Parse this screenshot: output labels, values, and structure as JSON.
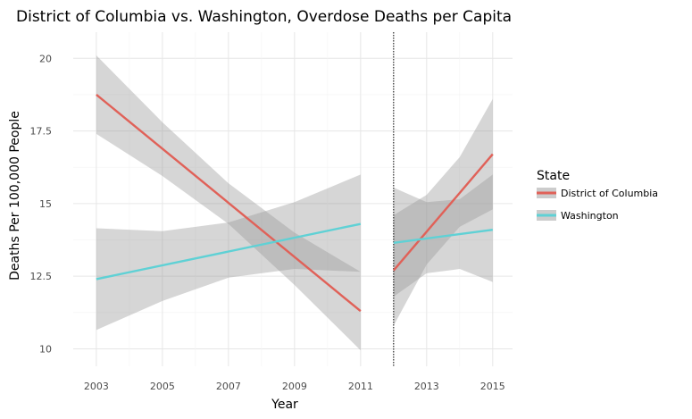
{
  "chart_data": {
    "type": "line",
    "title": "District of Columbia vs. Washington, Overdose Deaths per Capita",
    "xlabel": "Year",
    "ylabel": "Deaths Per 100,000 People",
    "xlim": [
      2002.3,
      2015.6
    ],
    "ylim": [
      9.4,
      20.9
    ],
    "x_ticks": [
      2003,
      2005,
      2007,
      2009,
      2011,
      2013,
      2015
    ],
    "x_tick_labels": [
      "2003",
      "2005",
      "2007",
      "2009",
      "2011",
      "2013",
      "2015"
    ],
    "y_ticks": [
      10,
      12.5,
      15,
      17.5,
      20
    ],
    "y_tick_labels": [
      "10",
      "12.5",
      "15",
      "17.5",
      "20"
    ],
    "grid": true,
    "cutoff_x": 2012,
    "legend": {
      "title": "State",
      "placement": "right"
    },
    "series": [
      {
        "name": "District of Columbia",
        "color": "#e06158",
        "segments": [
          {
            "x": [
              2003,
              2011
            ],
            "y": [
              18.75,
              11.3
            ],
            "band_x": [
              2003,
              2005,
              2007,
              2009,
              2011
            ],
            "band_upper": [
              20.1,
              17.8,
              15.7,
              14.0,
              12.65
            ],
            "band_lower": [
              17.4,
              15.95,
              14.3,
              12.2,
              9.95
            ]
          },
          {
            "x": [
              2012,
              2015
            ],
            "y": [
              12.7,
              16.7
            ],
            "band_x": [
              2012,
              2013,
              2014,
              2015
            ],
            "band_upper": [
              14.6,
              15.3,
              16.6,
              18.6
            ],
            "band_lower": [
              10.8,
              12.9,
              14.2,
              14.8
            ]
          }
        ]
      },
      {
        "name": "Washington",
        "color": "#5fd1d5",
        "segments": [
          {
            "x": [
              2003,
              2011
            ],
            "y": [
              12.4,
              14.3
            ],
            "band_x": [
              2003,
              2005,
              2007,
              2009,
              2011
            ],
            "band_upper": [
              14.15,
              14.05,
              14.35,
              15.05,
              16.0
            ],
            "band_lower": [
              10.65,
              11.65,
              12.45,
              12.75,
              12.65
            ]
          },
          {
            "x": [
              2012,
              2015
            ],
            "y": [
              13.65,
              14.1
            ],
            "band_x": [
              2012,
              2013,
              2014,
              2015
            ],
            "band_upper": [
              15.55,
              15.05,
              15.15,
              16.0
            ],
            "band_lower": [
              11.8,
              12.6,
              12.75,
              12.3
            ]
          }
        ]
      }
    ]
  }
}
